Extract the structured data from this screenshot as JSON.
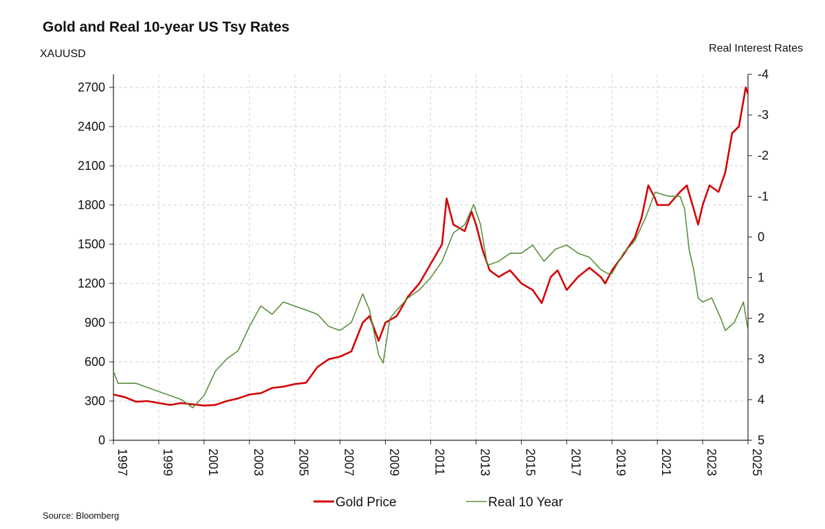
{
  "chart_data": {
    "type": "line",
    "title": "Gold and Real 10-year US Tsy Rates",
    "ylabel_left": "XAUUSD",
    "ylabel_right": "Real Interest Rates",
    "source": "Source: Bloomberg",
    "xlim": [
      1997,
      2025
    ],
    "x_ticks": [
      1997,
      1999,
      2001,
      2003,
      2005,
      2007,
      2009,
      2011,
      2013,
      2015,
      2017,
      2019,
      2021,
      2023,
      2025
    ],
    "ylim_left": [
      0,
      2800
    ],
    "y_ticks_left": [
      0,
      300,
      600,
      900,
      1200,
      1500,
      1800,
      2100,
      2400,
      2700
    ],
    "ylim_right": [
      5,
      -4
    ],
    "y_ticks_right": [
      5,
      4,
      3,
      2,
      1,
      0,
      -1,
      -2,
      -3,
      -4
    ],
    "y_ticks_right_labels": [
      "5",
      "4",
      "3",
      "2",
      "1",
      "0",
      "-1",
      "-2",
      "-3",
      "-4"
    ],
    "right_axis_inverted": true,
    "grid": true,
    "legend_position": "bottom-center",
    "colors": {
      "gold": "#d40000",
      "real": "#5a8f3a"
    },
    "series": [
      {
        "name": "Gold Price",
        "axis": "left",
        "x": [
          1997.0,
          1997.5,
          1998.0,
          1998.5,
          1999.0,
          1999.5,
          2000.0,
          2000.5,
          2001.0,
          2001.5,
          2002.0,
          2002.5,
          2003.0,
          2003.5,
          2004.0,
          2004.5,
          2005.0,
          2005.5,
          2006.0,
          2006.5,
          2007.0,
          2007.5,
          2008.0,
          2008.3,
          2008.7,
          2009.0,
          2009.5,
          2010.0,
          2010.5,
          2011.0,
          2011.5,
          2011.7,
          2012.0,
          2012.5,
          2012.8,
          2013.0,
          2013.3,
          2013.6,
          2014.0,
          2014.5,
          2015.0,
          2015.5,
          2015.9,
          2016.3,
          2016.6,
          2017.0,
          2017.5,
          2018.0,
          2018.5,
          2018.7,
          2019.0,
          2019.5,
          2020.0,
          2020.3,
          2020.6,
          2020.9,
          2021.0,
          2021.5,
          2022.0,
          2022.3,
          2022.8,
          2023.0,
          2023.3,
          2023.7,
          2024.0,
          2024.3,
          2024.6,
          2024.9,
          2025.0
        ],
        "values": [
          350,
          330,
          295,
          300,
          285,
          270,
          285,
          275,
          265,
          270,
          300,
          320,
          350,
          360,
          400,
          410,
          430,
          440,
          560,
          620,
          640,
          680,
          900,
          950,
          760,
          900,
          950,
          1100,
          1200,
          1350,
          1500,
          1850,
          1650,
          1600,
          1750,
          1650,
          1450,
          1300,
          1250,
          1300,
          1200,
          1150,
          1050,
          1250,
          1300,
          1150,
          1250,
          1320,
          1250,
          1200,
          1300,
          1420,
          1550,
          1700,
          1950,
          1850,
          1800,
          1800,
          1900,
          1950,
          1650,
          1800,
          1950,
          1900,
          2050,
          2350,
          2400,
          2700,
          2650
        ]
      },
      {
        "name": "Real 10 Year",
        "axis": "right",
        "x": [
          1997.0,
          1997.2,
          1998.0,
          1998.5,
          1999.0,
          1999.5,
          2000.0,
          2000.5,
          2001.0,
          2001.5,
          2002.0,
          2002.5,
          2003.0,
          2003.5,
          2004.0,
          2004.5,
          2005.0,
          2005.5,
          2006.0,
          2006.5,
          2007.0,
          2007.5,
          2008.0,
          2008.3,
          2008.7,
          2008.9,
          2009.2,
          2009.5,
          2010.0,
          2010.5,
          2011.0,
          2011.5,
          2012.0,
          2012.5,
          2012.9,
          2013.2,
          2013.5,
          2014.0,
          2014.5,
          2015.0,
          2015.5,
          2016.0,
          2016.5,
          2017.0,
          2017.5,
          2018.0,
          2018.5,
          2018.8,
          2019.0,
          2019.5,
          2020.0,
          2020.5,
          2020.9,
          2021.5,
          2022.0,
          2022.2,
          2022.4,
          2022.6,
          2022.8,
          2023.0,
          2023.4,
          2023.8,
          2024.0,
          2024.4,
          2024.8,
          2025.0
        ],
        "values": [
          3.3,
          3.6,
          3.6,
          3.7,
          3.8,
          3.9,
          4.0,
          4.2,
          3.9,
          3.3,
          3.0,
          2.8,
          2.2,
          1.7,
          1.9,
          1.6,
          1.7,
          1.8,
          1.9,
          2.2,
          2.3,
          2.1,
          1.4,
          1.8,
          2.9,
          3.1,
          2.0,
          1.8,
          1.5,
          1.3,
          1.0,
          0.6,
          -0.1,
          -0.3,
          -0.8,
          -0.3,
          0.7,
          0.6,
          0.4,
          0.4,
          0.2,
          0.6,
          0.3,
          0.2,
          0.4,
          0.5,
          0.8,
          0.9,
          0.9,
          0.4,
          0.1,
          -0.5,
          -1.1,
          -1.0,
          -1.0,
          -0.7,
          0.3,
          0.8,
          1.5,
          1.6,
          1.5,
          2.0,
          2.3,
          2.1,
          1.6,
          2.3
        ]
      }
    ]
  }
}
